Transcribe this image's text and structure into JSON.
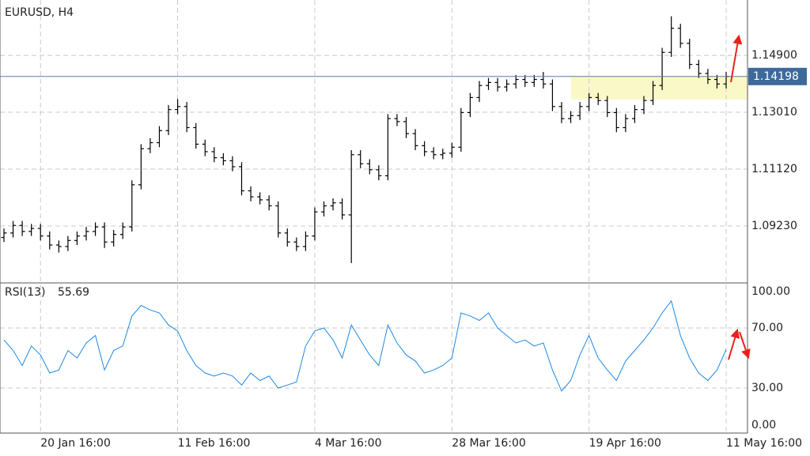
{
  "chart_data": [
    {
      "type": "ohlc",
      "title": "EURUSD, H4",
      "color": "#000000",
      "grid": true,
      "categories": [
        null,
        null,
        null,
        null,
        "20 Jan 16:00",
        null,
        null,
        null,
        null,
        null,
        null,
        null,
        null,
        null,
        null,
        null,
        null,
        null,
        null,
        "11 Feb 16:00",
        null,
        null,
        null,
        null,
        null,
        null,
        null,
        null,
        null,
        null,
        null,
        null,
        null,
        null,
        "4 Mar 16:00",
        null,
        null,
        null,
        null,
        null,
        null,
        null,
        null,
        null,
        null,
        null,
        null,
        null,
        null,
        "28 Mar 16:00",
        null,
        null,
        null,
        null,
        null,
        null,
        null,
        null,
        null,
        null,
        null,
        null,
        null,
        null,
        "19 Apr 16:00",
        null,
        null,
        null,
        null,
        null,
        null,
        null,
        null,
        null,
        null,
        null,
        null,
        null,
        null,
        "11 May 16:00"
      ],
      "open": [
        1.0885,
        1.09,
        1.0925,
        1.0905,
        1.0915,
        1.089,
        1.086,
        1.0855,
        1.0875,
        1.089,
        1.0905,
        1.092,
        1.087,
        1.0895,
        1.092,
        1.106,
        1.118,
        1.12,
        1.124,
        1.131,
        1.132,
        1.125,
        1.1195,
        1.117,
        1.115,
        1.114,
        1.112,
        1.104,
        1.102,
        1.101,
        1.099,
        1.09,
        1.087,
        1.0855,
        1.089,
        1.097,
        1.099,
        1.1,
        1.096,
        1.116,
        1.113,
        1.111,
        1.109,
        1.128,
        1.127,
        1.123,
        1.119,
        1.117,
        1.116,
        1.1165,
        1.1185,
        1.13,
        1.135,
        1.139,
        1.14,
        1.1385,
        1.1395,
        1.141,
        1.14,
        1.141,
        1.1395,
        1.132,
        1.128,
        1.129,
        1.132,
        1.135,
        1.134,
        1.13,
        1.125,
        1.128,
        1.131,
        1.134,
        1.139,
        1.15,
        1.158,
        1.153,
        1.146,
        1.143,
        1.141,
        1.1395
      ],
      "high": [
        1.0915,
        1.094,
        1.094,
        1.093,
        1.093,
        1.0905,
        1.0875,
        1.089,
        1.0905,
        1.092,
        1.0935,
        1.0935,
        1.091,
        1.0935,
        1.1075,
        1.1195,
        1.1215,
        1.1255,
        1.1325,
        1.1345,
        1.1335,
        1.1265,
        1.121,
        1.1185,
        1.1165,
        1.1155,
        1.1135,
        1.1055,
        1.1035,
        1.1025,
        1.1005,
        1.0915,
        1.0885,
        1.0905,
        1.0985,
        1.1005,
        1.1015,
        1.1015,
        1.1175,
        1.1175,
        1.1145,
        1.1125,
        1.1295,
        1.1295,
        1.1285,
        1.1245,
        1.1205,
        1.1185,
        1.118,
        1.12,
        1.1315,
        1.1365,
        1.1405,
        1.1415,
        1.1415,
        1.141,
        1.1425,
        1.1425,
        1.1425,
        1.1435,
        1.141,
        1.1335,
        1.1305,
        1.1335,
        1.1365,
        1.1365,
        1.1355,
        1.1315,
        1.1295,
        1.1325,
        1.1355,
        1.1405,
        1.1515,
        1.162,
        1.1595,
        1.1545,
        1.1475,
        1.1445,
        1.1425,
        1.1435
      ],
      "low": [
        1.087,
        1.0885,
        1.089,
        1.089,
        1.0875,
        1.0845,
        1.0835,
        1.084,
        1.086,
        1.0875,
        1.089,
        1.085,
        1.0855,
        1.088,
        1.0905,
        1.1045,
        1.1165,
        1.1185,
        1.1225,
        1.1295,
        1.1235,
        1.118,
        1.1155,
        1.1135,
        1.1125,
        1.1105,
        1.1025,
        1.1005,
        1.0995,
        1.0975,
        1.0885,
        1.0855,
        1.084,
        1.084,
        1.0875,
        1.0955,
        1.0975,
        1.0945,
        1.08,
        1.1115,
        1.1095,
        1.1075,
        1.1075,
        1.1255,
        1.1215,
        1.1175,
        1.1155,
        1.1145,
        1.1145,
        1.115,
        1.117,
        1.1285,
        1.1335,
        1.1375,
        1.137,
        1.137,
        1.138,
        1.1385,
        1.1385,
        1.138,
        1.1305,
        1.1265,
        1.1265,
        1.1275,
        1.1305,
        1.1325,
        1.1285,
        1.1235,
        1.1235,
        1.1265,
        1.1295,
        1.1325,
        1.1375,
        1.1485,
        1.1515,
        1.1445,
        1.1415,
        1.1395,
        1.138,
        1.138
      ],
      "close": [
        1.09,
        1.0925,
        1.0905,
        1.0915,
        1.089,
        1.086,
        1.0855,
        1.0875,
        1.089,
        1.0905,
        1.092,
        1.087,
        1.0895,
        1.092,
        1.106,
        1.118,
        1.12,
        1.124,
        1.131,
        1.132,
        1.125,
        1.1195,
        1.117,
        1.115,
        1.114,
        1.112,
        1.104,
        1.102,
        1.101,
        1.099,
        1.09,
        1.087,
        1.0855,
        1.089,
        1.097,
        1.099,
        1.1,
        1.096,
        1.116,
        1.113,
        1.111,
        1.109,
        1.128,
        1.127,
        1.123,
        1.119,
        1.117,
        1.116,
        1.1165,
        1.1185,
        1.13,
        1.135,
        1.139,
        1.14,
        1.1385,
        1.1395,
        1.141,
        1.14,
        1.141,
        1.1395,
        1.132,
        1.128,
        1.129,
        1.132,
        1.135,
        1.134,
        1.13,
        1.125,
        1.128,
        1.131,
        1.134,
        1.139,
        1.15,
        1.158,
        1.153,
        1.146,
        1.143,
        1.141,
        1.1395,
        1.142
      ],
      "ylim": [
        1.0734,
        1.1674
      ],
      "yticks": [
        {
          "value": 1.0923,
          "label": "1.09230"
        },
        {
          "value": 1.1112,
          "label": "1.11120"
        },
        {
          "value": 1.1301,
          "label": "1.13010"
        },
        {
          "value": 1.149,
          "label": "1.14900"
        }
      ],
      "current_price": 1.14198
    },
    {
      "type": "line",
      "title": "RSI(13)",
      "color": "#1e88e5",
      "grid": true,
      "values": [
        62,
        55,
        45,
        58,
        52,
        40,
        42,
        55,
        50,
        60,
        65,
        42,
        55,
        58,
        78,
        85,
        82,
        80,
        72,
        68,
        55,
        45,
        40,
        38,
        40,
        38,
        32,
        40,
        35,
        38,
        30,
        32,
        34,
        58,
        68,
        70,
        62,
        50,
        72,
        62,
        52,
        45,
        72,
        60,
        52,
        48,
        40,
        42,
        45,
        50,
        80,
        78,
        75,
        80,
        70,
        65,
        60,
        62,
        58,
        60,
        42,
        28,
        35,
        52,
        65,
        50,
        42,
        35,
        48,
        55,
        62,
        70,
        80,
        88,
        65,
        50,
        40,
        35,
        42,
        55.69
      ],
      "ylim": [
        0,
        100
      ],
      "yticks": [
        {
          "value": 0,
          "label": "0.00"
        },
        {
          "value": 30,
          "label": "30.00"
        },
        {
          "value": 70,
          "label": "70.00"
        },
        {
          "value": 100,
          "label": "100.00"
        }
      ]
    }
  ]
}
